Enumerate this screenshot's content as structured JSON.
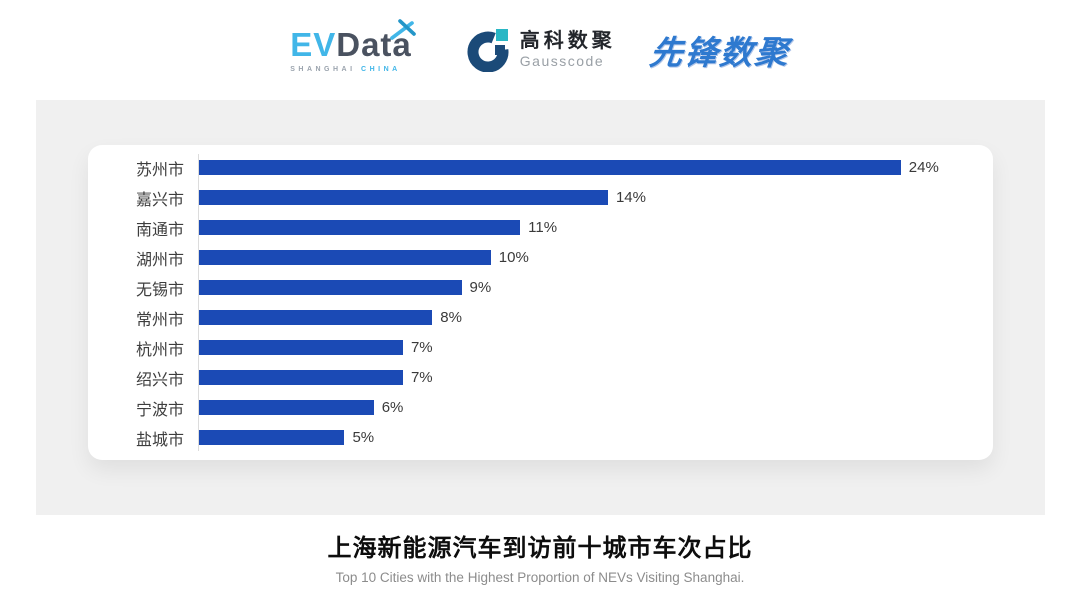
{
  "header": {
    "logos": {
      "evdata": {
        "ev": "EV",
        "data": "Data",
        "sub_left": "SHANGHAI",
        "sub_right": "CHINA"
      },
      "gausscode": {
        "cn": "高科数聚",
        "en": "Gausscode"
      },
      "pioneer": {
        "text": "先锋数聚"
      }
    }
  },
  "chart_data": {
    "type": "bar",
    "orientation": "horizontal",
    "categories": [
      "苏州市",
      "嘉兴市",
      "南通市",
      "湖州市",
      "无锡市",
      "常州市",
      "杭州市",
      "绍兴市",
      "宁波市",
      "盐城市"
    ],
    "values": [
      24,
      14,
      11,
      10,
      9,
      8,
      7,
      7,
      6,
      5
    ],
    "value_labels": [
      "24%",
      "14%",
      "11%",
      "10%",
      "9%",
      "8%",
      "7%",
      "7%",
      "6%",
      "5%"
    ],
    "xlim": [
      0,
      24
    ],
    "grid": false,
    "legend": "none",
    "title": "上海新能源汽车到访前十城市车次占比",
    "subtitle": "Top 10 Cities with the Highest Proportion of  NEVs Visiting Shanghai."
  },
  "colors": {
    "bar": "#1b4ab5",
    "evdata_blue": "#41b6e8",
    "evdata_dark": "#4a5260",
    "gauss_navy": "#1b4a78",
    "gauss_teal": "#29b7c5",
    "pioneer_blue": "#2e79cf",
    "panel_bg": "#f0f0f0",
    "card_bg": "#ffffff"
  }
}
